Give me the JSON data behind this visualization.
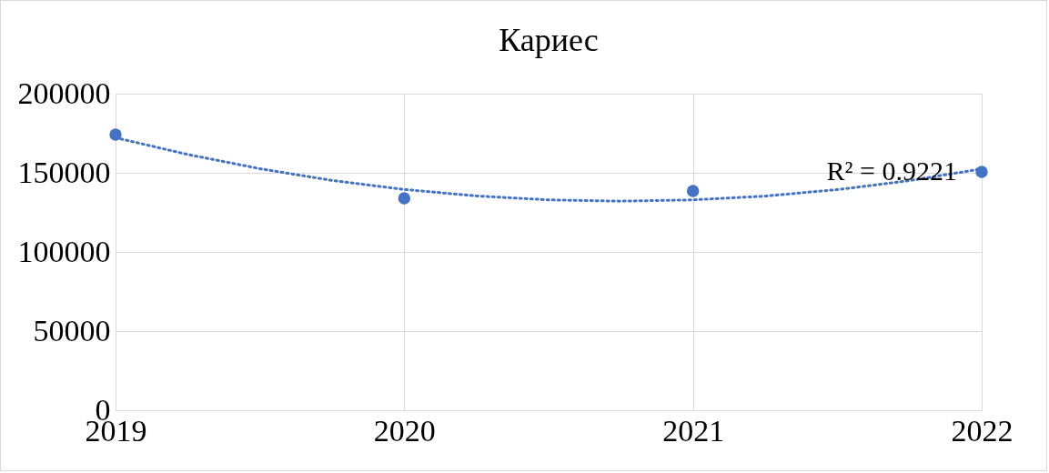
{
  "chart_data": {
    "type": "scatter",
    "title": "Кариес",
    "x": [
      2019,
      2020,
      2021,
      2022
    ],
    "xlim": [
      2019,
      2022
    ],
    "xticks": [
      2019,
      2020,
      2021,
      2022
    ],
    "ylim": [
      0,
      200000
    ],
    "yticks": [
      0,
      50000,
      100000,
      150000,
      200000
    ],
    "grid": true,
    "series": [
      {
        "color": "#4472c4",
        "marker": "circle",
        "values": [
          174100,
          133900,
          138500,
          150600
        ]
      },
      {
        "type": "line",
        "line_style": "dotted",
        "color": "#4472c4",
        "x": [
          2019,
          2019.25,
          2019.5,
          2019.75,
          2020,
          2020.25,
          2020.5,
          2020.75,
          2021,
          2021.25,
          2021.5,
          2021.75,
          2022
        ],
        "values": [
          172200,
          161600,
          152600,
          145200,
          139500,
          135400,
          132900,
          132100,
          132900,
          135300,
          139400,
          145100,
          152500
        ]
      }
    ],
    "annotations": [
      "R² = 0.9221"
    ]
  }
}
